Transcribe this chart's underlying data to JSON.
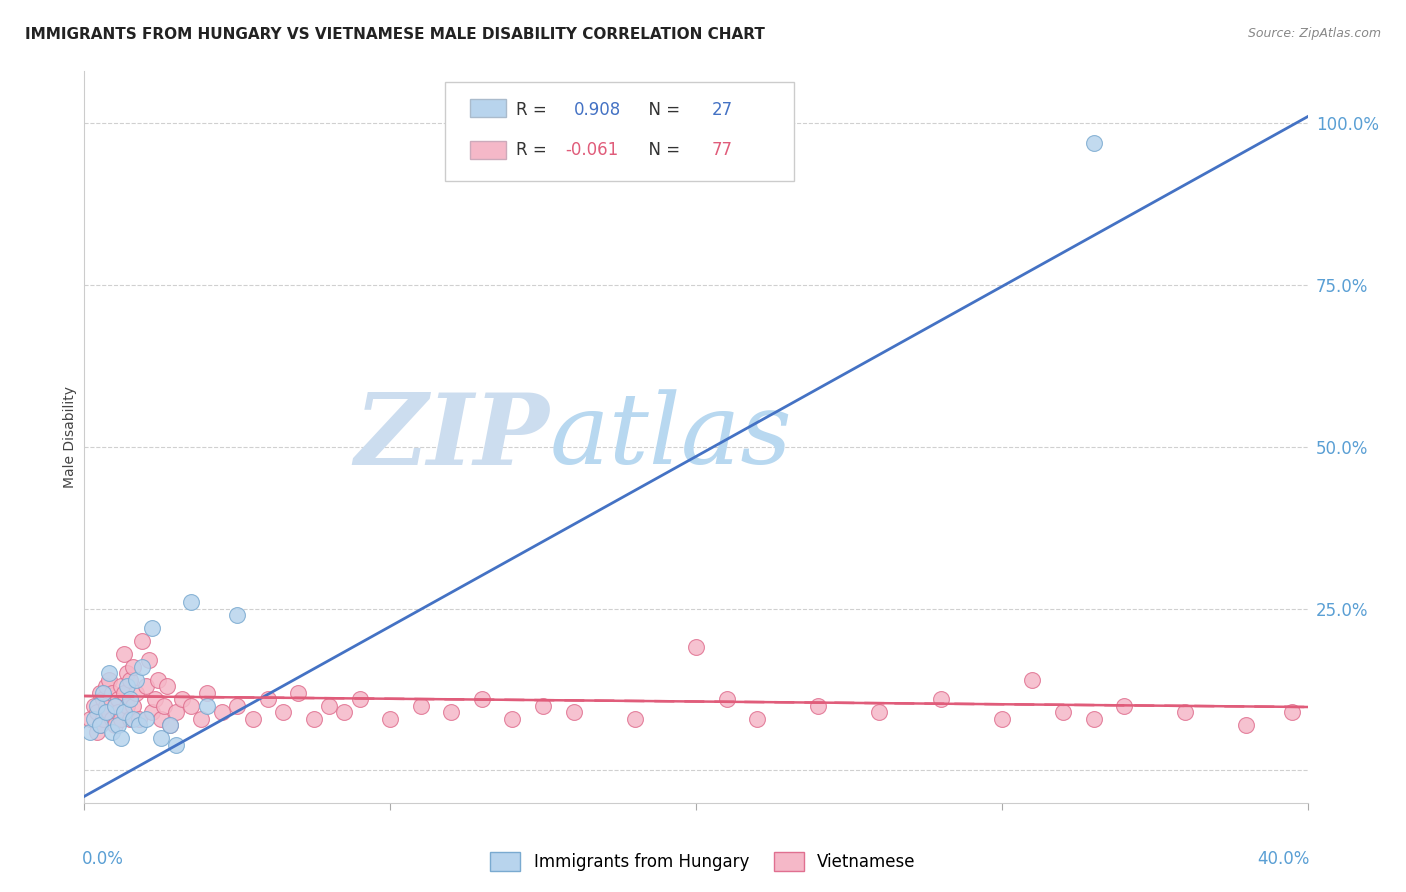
{
  "title": "IMMIGRANTS FROM HUNGARY VS VIETNAMESE MALE DISABILITY CORRELATION CHART",
  "source": "Source: ZipAtlas.com",
  "ylabel": "Male Disability",
  "yticks": [
    0.0,
    0.25,
    0.5,
    0.75,
    1.0
  ],
  "ytick_labels": [
    "",
    "25.0%",
    "50.0%",
    "75.0%",
    "100.0%"
  ],
  "xlim": [
    0.0,
    0.4
  ],
  "ylim": [
    -0.05,
    1.08
  ],
  "legend1_label": "R =  0.908   N = 27",
  "legend2_label": "R = -0.061   N = 77",
  "legend1_color": "#b8d4ed",
  "legend2_color": "#f5b8c8",
  "line1_color": "#4472C4",
  "line2_color": "#E05C7A",
  "scatter1_color": "#b8d4ed",
  "scatter1_edge": "#7aaad0",
  "scatter2_color": "#f5b8c8",
  "scatter2_edge": "#e07090",
  "watermark_zip": "ZIP",
  "watermark_atlas": "atlas",
  "watermark_color_zip": "#cddff0",
  "watermark_color_atlas": "#c8dff5",
  "background_color": "#ffffff",
  "grid_color": "#d0d0d0",
  "title_fontsize": 11,
  "source_fontsize": 9,
  "axis_label_color": "#5a9fd4",
  "hungary_x": [
    0.002,
    0.003,
    0.004,
    0.005,
    0.006,
    0.007,
    0.008,
    0.009,
    0.01,
    0.011,
    0.012,
    0.013,
    0.014,
    0.015,
    0.016,
    0.017,
    0.018,
    0.019,
    0.02,
    0.022,
    0.025,
    0.028,
    0.03,
    0.035,
    0.04,
    0.05,
    0.33
  ],
  "hungary_y": [
    0.06,
    0.08,
    0.1,
    0.07,
    0.12,
    0.09,
    0.15,
    0.06,
    0.1,
    0.07,
    0.05,
    0.09,
    0.13,
    0.11,
    0.08,
    0.14,
    0.07,
    0.16,
    0.08,
    0.22,
    0.05,
    0.07,
    0.04,
    0.26,
    0.1,
    0.24,
    0.97
  ],
  "vietnamese_x": [
    0.002,
    0.003,
    0.004,
    0.004,
    0.005,
    0.005,
    0.006,
    0.006,
    0.007,
    0.007,
    0.008,
    0.008,
    0.009,
    0.009,
    0.01,
    0.01,
    0.011,
    0.011,
    0.012,
    0.012,
    0.013,
    0.013,
    0.014,
    0.014,
    0.015,
    0.015,
    0.016,
    0.016,
    0.017,
    0.018,
    0.019,
    0.02,
    0.021,
    0.022,
    0.023,
    0.024,
    0.025,
    0.026,
    0.027,
    0.028,
    0.03,
    0.032,
    0.035,
    0.038,
    0.04,
    0.045,
    0.05,
    0.055,
    0.06,
    0.065,
    0.07,
    0.075,
    0.08,
    0.085,
    0.09,
    0.1,
    0.11,
    0.12,
    0.13,
    0.14,
    0.15,
    0.16,
    0.18,
    0.2,
    0.21,
    0.22,
    0.24,
    0.26,
    0.28,
    0.3,
    0.31,
    0.32,
    0.33,
    0.34,
    0.36,
    0.38,
    0.395
  ],
  "vietnamese_y": [
    0.08,
    0.1,
    0.06,
    0.09,
    0.12,
    0.07,
    0.11,
    0.08,
    0.13,
    0.1,
    0.09,
    0.14,
    0.08,
    0.12,
    0.1,
    0.07,
    0.11,
    0.09,
    0.13,
    0.08,
    0.18,
    0.12,
    0.15,
    0.1,
    0.14,
    0.08,
    0.16,
    0.1,
    0.12,
    0.08,
    0.2,
    0.13,
    0.17,
    0.09,
    0.11,
    0.14,
    0.08,
    0.1,
    0.13,
    0.07,
    0.09,
    0.11,
    0.1,
    0.08,
    0.12,
    0.09,
    0.1,
    0.08,
    0.11,
    0.09,
    0.12,
    0.08,
    0.1,
    0.09,
    0.11,
    0.08,
    0.1,
    0.09,
    0.11,
    0.08,
    0.1,
    0.09,
    0.08,
    0.19,
    0.11,
    0.08,
    0.1,
    0.09,
    0.11,
    0.08,
    0.14,
    0.09,
    0.08,
    0.1,
    0.09,
    0.07,
    0.09
  ],
  "hungary_line_x": [
    0.0,
    0.4
  ],
  "hungary_line_y": [
    -0.04,
    1.01
  ],
  "vietnamese_line_x": [
    0.0,
    0.4
  ],
  "vietnamese_line_y": [
    0.115,
    0.098
  ]
}
